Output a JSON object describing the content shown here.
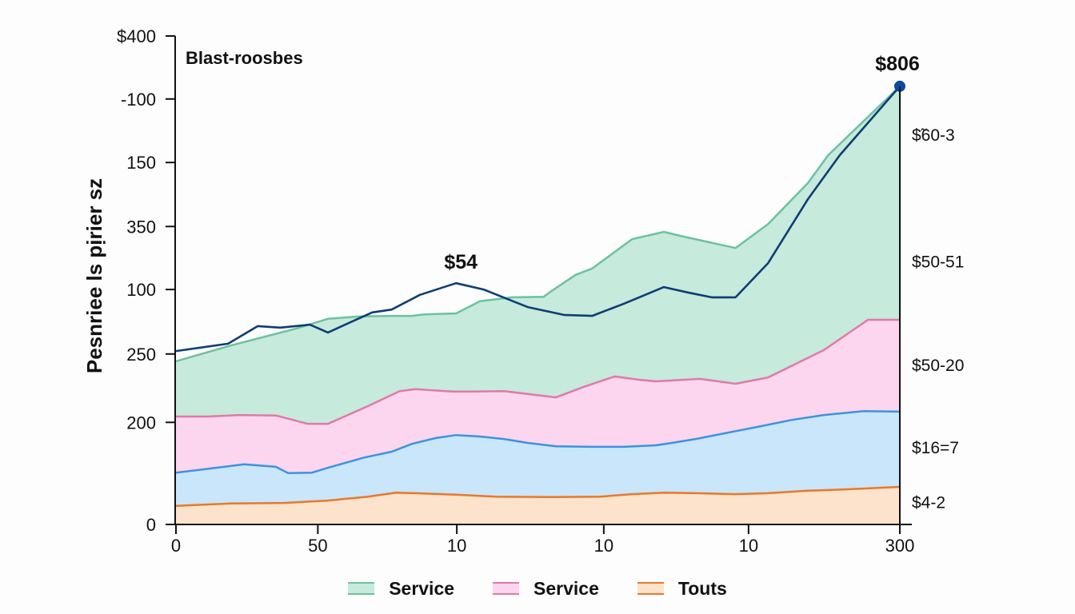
{
  "chart_data": {
    "type": "area",
    "stacked": true,
    "title": "Blast-roosbes",
    "ylabel": "Pesnriee ls pịrier sz",
    "xlabel": "",
    "value_scale": "normalized 0-100 (baseline to top tick)",
    "ylim": [
      0,
      100
    ],
    "xlim": [
      0,
      1
    ],
    "y_ticks": [
      {
        "label": "$400",
        "value": 100
      },
      {
        "label": "-100",
        "value": 87.1
      },
      {
        "label": "150",
        "value": 74.1
      },
      {
        "label": "350",
        "value": 61.0
      },
      {
        "label": "100",
        "value": 48.1
      },
      {
        "label": "250",
        "value": 34.9
      },
      {
        "label": "200",
        "value": 20.9
      },
      {
        "label": "0",
        "value": 0
      }
    ],
    "x_ticks": [
      {
        "label": "0",
        "pos": 0
      },
      {
        "label": "50",
        "pos": 0.196
      },
      {
        "label": "10",
        "pos": 0.388
      },
      {
        "label": "10",
        "pos": 0.591
      },
      {
        "label": "10",
        "pos": 0.791
      },
      {
        "label": "300",
        "pos": 1
      }
    ],
    "grid": false,
    "legend_position": "bottom",
    "legend": [
      {
        "label": "Service",
        "fill": "#c6eadb",
        "stroke": "#6cc2a0"
      },
      {
        "label": "Service",
        "fill": "#fcd6ee",
        "stroke": "#e07aa6"
      },
      {
        "label": "Touts",
        "fill": "#fde3cb",
        "stroke": "#e8782a"
      }
    ],
    "layers": [
      {
        "name": "Touts",
        "fill": "#fde3cb",
        "stroke": "#e8782a",
        "points": [
          [
            0,
            3.8
          ],
          [
            0.077,
            4.3
          ],
          [
            0.149,
            4.4
          ],
          [
            0.21,
            4.9
          ],
          [
            0.265,
            5.7
          ],
          [
            0.304,
            6.5
          ],
          [
            0.331,
            6.4
          ],
          [
            0.387,
            6.1
          ],
          [
            0.442,
            5.7
          ],
          [
            0.519,
            5.6
          ],
          [
            0.586,
            5.7
          ],
          [
            0.63,
            6.2
          ],
          [
            0.674,
            6.5
          ],
          [
            0.718,
            6.4
          ],
          [
            0.773,
            6.2
          ],
          [
            0.818,
            6.4
          ],
          [
            0.873,
            6.9
          ],
          [
            0.928,
            7.2
          ],
          [
            1,
            7.7
          ]
        ]
      },
      {
        "name": "Blue layer",
        "fill": "#c9e6fa",
        "stroke": "#3d93dd",
        "points": [
          [
            0,
            10.6
          ],
          [
            0.072,
            11.9
          ],
          [
            0.094,
            12.3
          ],
          [
            0.138,
            11.8
          ],
          [
            0.155,
            10.5
          ],
          [
            0.188,
            10.6
          ],
          [
            0.21,
            11.6
          ],
          [
            0.26,
            13.7
          ],
          [
            0.298,
            14.9
          ],
          [
            0.326,
            16.5
          ],
          [
            0.359,
            17.7
          ],
          [
            0.387,
            18.3
          ],
          [
            0.42,
            18.0
          ],
          [
            0.453,
            17.5
          ],
          [
            0.486,
            16.7
          ],
          [
            0.525,
            16.0
          ],
          [
            0.575,
            15.9
          ],
          [
            0.619,
            15.9
          ],
          [
            0.663,
            16.2
          ],
          [
            0.685,
            16.7
          ],
          [
            0.718,
            17.5
          ],
          [
            0.773,
            19.1
          ],
          [
            0.801,
            19.9
          ],
          [
            0.851,
            21.4
          ],
          [
            0.895,
            22.4
          ],
          [
            0.95,
            23.2
          ],
          [
            1,
            23.1
          ]
        ]
      },
      {
        "name": "Service (pink)",
        "fill": "#fcd6ee",
        "stroke": "#e07aa6",
        "points": [
          [
            0,
            22.1
          ],
          [
            0.044,
            22.1
          ],
          [
            0.088,
            22.4
          ],
          [
            0.138,
            22.3
          ],
          [
            0.182,
            20.6
          ],
          [
            0.21,
            20.6
          ],
          [
            0.265,
            24.2
          ],
          [
            0.309,
            27.3
          ],
          [
            0.331,
            27.7
          ],
          [
            0.381,
            27.2
          ],
          [
            0.409,
            27.2
          ],
          [
            0.453,
            27.3
          ],
          [
            0.525,
            26.0
          ],
          [
            0.564,
            28.2
          ],
          [
            0.606,
            30.3
          ],
          [
            0.641,
            29.6
          ],
          [
            0.663,
            29.3
          ],
          [
            0.724,
            29.8
          ],
          [
            0.773,
            28.8
          ],
          [
            0.818,
            30.1
          ],
          [
            0.895,
            35.7
          ],
          [
            0.956,
            41.9
          ],
          [
            1,
            41.9
          ]
        ]
      },
      {
        "name": "Service (green)",
        "fill": "#c6eadb",
        "stroke": "#6cc2a0",
        "points": [
          [
            0,
            33.4
          ],
          [
            0.077,
            36.7
          ],
          [
            0.166,
            40.1
          ],
          [
            0.21,
            42.1
          ],
          [
            0.254,
            42.6
          ],
          [
            0.298,
            42.7
          ],
          [
            0.326,
            42.7
          ],
          [
            0.343,
            43.0
          ],
          [
            0.387,
            43.2
          ],
          [
            0.42,
            45.7
          ],
          [
            0.464,
            46.5
          ],
          [
            0.508,
            46.6
          ],
          [
            0.519,
            47.8
          ],
          [
            0.552,
            51.1
          ],
          [
            0.575,
            52.4
          ],
          [
            0.63,
            58.4
          ],
          [
            0.674,
            59.9
          ],
          [
            0.696,
            59.1
          ],
          [
            0.773,
            56.6
          ],
          [
            0.818,
            61.5
          ],
          [
            0.873,
            69.9
          ],
          [
            0.901,
            75.6
          ],
          [
            1,
            89.7
          ]
        ]
      }
    ],
    "line": {
      "name": "Total",
      "stroke": "#0f3d73",
      "points": [
        [
          0,
          35.5
        ],
        [
          0.072,
          37.0
        ],
        [
          0.113,
          40.6
        ],
        [
          0.144,
          40.3
        ],
        [
          0.185,
          40.9
        ],
        [
          0.21,
          39.3
        ],
        [
          0.238,
          41.2
        ],
        [
          0.271,
          43.4
        ],
        [
          0.298,
          44.0
        ],
        [
          0.337,
          47.0
        ],
        [
          0.387,
          49.4
        ],
        [
          0.425,
          48.1
        ],
        [
          0.486,
          44.5
        ],
        [
          0.536,
          42.9
        ],
        [
          0.575,
          42.7
        ],
        [
          0.619,
          45.2
        ],
        [
          0.674,
          48.6
        ],
        [
          0.707,
          47.5
        ],
        [
          0.74,
          46.5
        ],
        [
          0.773,
          46.5
        ],
        [
          0.818,
          53.5
        ],
        [
          0.873,
          66.6
        ],
        [
          0.917,
          75.6
        ],
        [
          1,
          89.7
        ]
      ],
      "end_marker": true
    },
    "annotations": [
      {
        "text": "$806",
        "anchor": "line-end"
      },
      {
        "text": "$54",
        "anchor": "line-peak"
      }
    ],
    "right_labels": [
      {
        "text": "$̃60-3",
        "value": 79.9
      },
      {
        "text": "$50-51",
        "value": 53.9
      },
      {
        "text": "$50-20",
        "value": 32.7
      },
      {
        "text": "$16=7",
        "value": 15.9
      },
      {
        "text": "$4-2",
        "value": 4.7
      }
    ]
  }
}
